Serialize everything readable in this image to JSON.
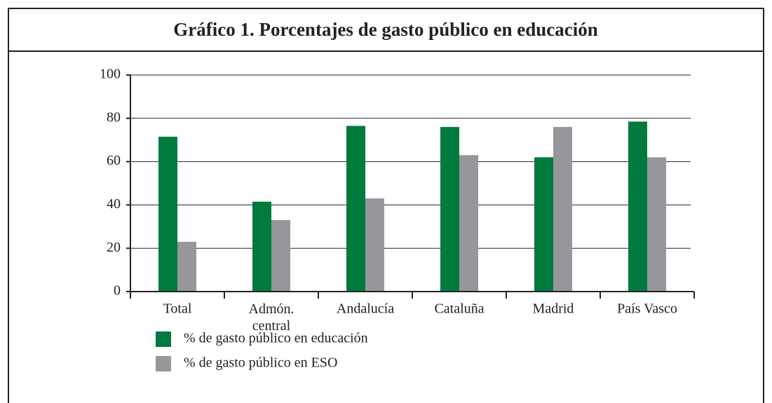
{
  "chart_data": {
    "type": "bar",
    "title": "Gráfico 1. Porcentajes de gasto público en educación",
    "categories": [
      "Total",
      "Admón.\ncentral",
      "Andalucía",
      "Cataluña",
      "Madrid",
      "País Vasco"
    ],
    "series": [
      {
        "name": "% de gasto público en educación",
        "color": "#007a3d",
        "values": [
          71.5,
          41.5,
          76.5,
          76,
          62,
          78.5
        ]
      },
      {
        "name": "% de gasto público en ESO",
        "color": "#96979a",
        "values": [
          23,
          33,
          43,
          63,
          76,
          62
        ]
      }
    ],
    "ylim": [
      0,
      100
    ],
    "yticks": [
      0,
      20,
      40,
      60,
      80,
      100
    ],
    "grid": true
  }
}
